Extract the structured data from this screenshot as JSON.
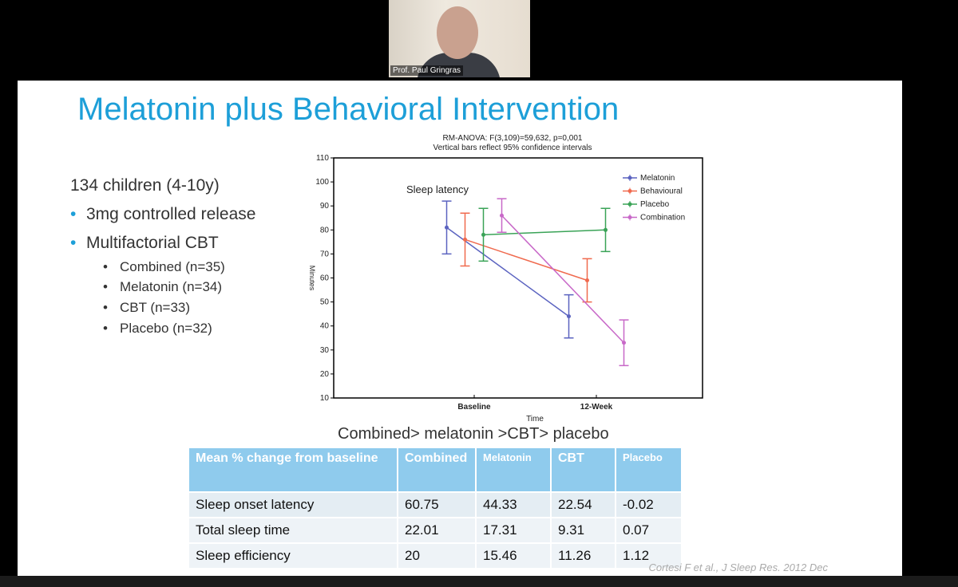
{
  "video": {
    "participant": "Prof. Paul Gringras"
  },
  "slide": {
    "title": "Melatonin plus Behavioral Intervention",
    "intro": "134 children (4-10y)",
    "bullets": [
      "3mg controlled release",
      "Multifactorial CBT"
    ],
    "sub_bullets": [
      "Combined (n=35)",
      "Melatonin (n=34)",
      "CBT (n=33)",
      "Placebo (n=32)"
    ],
    "chart": {
      "type": "line",
      "title": "RM-ANOVA:  F(3,109)=59,632, p=0,001",
      "subtitle": "Vertical bars reflect 95% confidence intervals",
      "annotation": "Sleep latency",
      "x_label": "Time",
      "y_label": "Minutes",
      "categories": [
        "Baseline",
        "12-Week"
      ],
      "ylim": [
        10,
        110
      ],
      "yticks": [
        10,
        20,
        30,
        40,
        50,
        60,
        70,
        80,
        90,
        100,
        110
      ],
      "series": [
        {
          "name": "Melatonin",
          "color": "#5b63c0",
          "values": [
            81,
            44
          ],
          "errors": [
            11,
            9
          ]
        },
        {
          "name": "Behavioural",
          "color": "#f06a4e",
          "values": [
            76,
            59
          ],
          "errors": [
            11,
            9
          ]
        },
        {
          "name": "Placebo",
          "color": "#3aa357",
          "values": [
            78,
            80
          ],
          "errors": [
            11,
            9
          ]
        },
        {
          "name": "Combination",
          "color": "#c868c8",
          "values": [
            86,
            33
          ],
          "errors": [
            7,
            9.5
          ]
        }
      ]
    },
    "conclusion": "Combined> melatonin >CBT> placebo",
    "table": {
      "header": [
        "Mean % change from baseline",
        "Combined",
        "Melatonin",
        "CBT",
        "Placebo"
      ],
      "rows": [
        [
          "Sleep onset latency",
          60.75,
          44.33,
          22.54,
          -0.02
        ],
        [
          "Total sleep time",
          22.01,
          17.31,
          9.31,
          0.07
        ],
        [
          "Sleep efficiency",
          20,
          15.46,
          11.26,
          1.12
        ]
      ]
    },
    "citation": "Cortesi F et al., J Sleep Res. 2012 Dec"
  }
}
